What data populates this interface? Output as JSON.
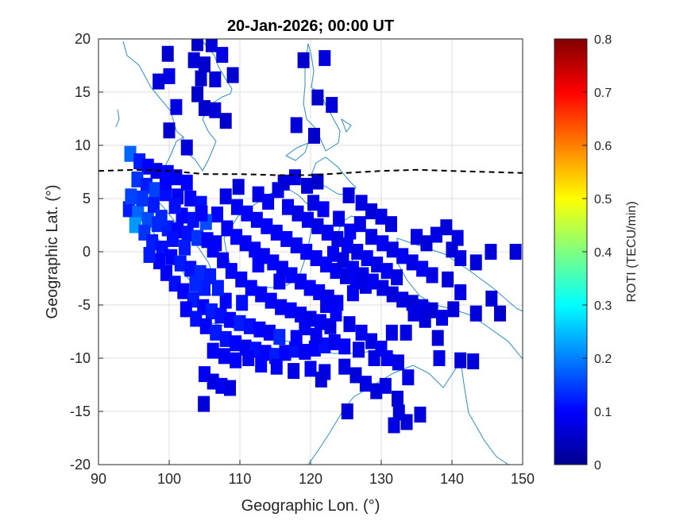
{
  "chart_data": {
    "type": "heatmap",
    "title": "20-Jan-2026; 00:00 UT",
    "xlabel": "Geographic Lon. (°)",
    "ylabel": "Geographic Lat. (°)",
    "xlim": [
      90,
      150
    ],
    "ylim": [
      -20,
      20
    ],
    "xticks": [
      "90",
      "100",
      "110",
      "120",
      "130",
      "140",
      "150"
    ],
    "yticks": [
      "20",
      "15",
      "10",
      "5",
      "0",
      "-5",
      "-10",
      "-15",
      "-20"
    ],
    "grid": true,
    "colorbar": {
      "label": "ROTI (TECU/min)",
      "range": [
        0,
        0.8
      ],
      "ticks": [
        "0",
        "0.1",
        "0.2",
        "0.3",
        "0.4",
        "0.5",
        "0.6",
        "0.7",
        "0.8"
      ],
      "colormap": "jet"
    },
    "dashed_line": {
      "color": "#000000",
      "points": [
        [
          90,
          7.6
        ],
        [
          95,
          7.7
        ],
        [
          100,
          7.6
        ],
        [
          105,
          7.3
        ],
        [
          110,
          7.3
        ],
        [
          115,
          7.2
        ],
        [
          120,
          7.2
        ],
        [
          125,
          7.4
        ],
        [
          130,
          7.6
        ],
        [
          135,
          7.7
        ],
        [
          140,
          7.6
        ],
        [
          145,
          7.5
        ],
        [
          150,
          7.4
        ]
      ]
    },
    "points": [
      [
        104,
        19.6,
        0.06
      ],
      [
        106,
        19.5,
        0.07
      ],
      [
        99.8,
        18.6,
        0.06
      ],
      [
        107.5,
        18.5,
        0.08
      ],
      [
        103.5,
        18,
        0.07
      ],
      [
        105,
        17.6,
        0.06
      ],
      [
        122,
        18.2,
        0.07
      ],
      [
        119,
        18,
        0.06
      ],
      [
        100,
        16.5,
        0.08
      ],
      [
        104.5,
        16.3,
        0.06
      ],
      [
        106.5,
        16.2,
        0.07
      ],
      [
        109,
        16.6,
        0.06
      ],
      [
        98.5,
        16,
        0.07
      ],
      [
        104,
        14.8,
        0.06
      ],
      [
        101,
        13.6,
        0.08
      ],
      [
        105,
        13.5,
        0.06
      ],
      [
        106.5,
        13.3,
        0.07
      ],
      [
        121,
        14.5,
        0.06
      ],
      [
        123,
        13.8,
        0.07
      ],
      [
        108,
        12.3,
        0.06
      ],
      [
        100,
        11.4,
        0.06
      ],
      [
        118,
        11.9,
        0.07
      ],
      [
        120.5,
        10.9,
        0.06
      ],
      [
        102.5,
        9.8,
        0.07
      ],
      [
        94.5,
        9.2,
        0.18
      ],
      [
        95.8,
        8.5,
        0.12
      ],
      [
        97,
        8,
        0.1
      ],
      [
        98.2,
        7.6,
        0.08
      ],
      [
        99.8,
        7.4,
        0.1
      ],
      [
        101,
        7,
        0.09
      ],
      [
        102.5,
        6.5,
        0.1
      ],
      [
        95.5,
        6.8,
        0.14
      ],
      [
        96.8,
        6.2,
        0.12
      ],
      [
        98,
        5.8,
        0.15
      ],
      [
        99.5,
        5.5,
        0.11
      ],
      [
        101.2,
        5.2,
        0.09
      ],
      [
        103,
        5,
        0.1
      ],
      [
        104.5,
        4.5,
        0.11
      ],
      [
        94.3,
        4,
        0.12
      ],
      [
        95.6,
        3.6,
        0.18
      ],
      [
        97,
        3,
        0.16
      ],
      [
        98.4,
        2.6,
        0.13
      ],
      [
        99.8,
        2.2,
        0.12
      ],
      [
        101.2,
        2,
        0.1
      ],
      [
        102.6,
        1.7,
        0.11
      ],
      [
        104,
        1.3,
        0.14
      ],
      [
        105.4,
        1.1,
        0.1
      ],
      [
        106.6,
        0.8,
        0.09
      ],
      [
        95.2,
        2.5,
        0.22
      ],
      [
        96.5,
        1.8,
        0.14
      ],
      [
        97.6,
        0.9,
        0.12
      ],
      [
        99,
        0.3,
        0.11
      ],
      [
        100.3,
        -0.5,
        0.1
      ],
      [
        101.6,
        -1.1,
        0.12
      ],
      [
        103,
        -1.6,
        0.11
      ],
      [
        104.4,
        -2,
        0.13
      ],
      [
        105.8,
        -2.3,
        0.12
      ],
      [
        98.6,
        -0.9,
        0.1
      ],
      [
        99.6,
        -2,
        0.09
      ],
      [
        100.8,
        -3,
        0.11
      ],
      [
        102,
        -3.7,
        0.1
      ],
      [
        103.4,
        -4.5,
        0.12
      ],
      [
        104.8,
        -5.2,
        0.1
      ],
      [
        106,
        -5.6,
        0.12
      ],
      [
        107.3,
        -6,
        0.11
      ],
      [
        108.6,
        -6.4,
        0.1
      ],
      [
        110,
        -6.7,
        0.12
      ],
      [
        111.4,
        -7,
        0.11
      ],
      [
        112.8,
        -7.3,
        0.1
      ],
      [
        114.2,
        -7.6,
        0.09
      ],
      [
        115.6,
        -8,
        0.13
      ],
      [
        102.4,
        -5.4,
        0.1
      ],
      [
        103.8,
        -6.3,
        0.11
      ],
      [
        105.2,
        -7,
        0.1
      ],
      [
        106.6,
        -7.6,
        0.12
      ],
      [
        108,
        -8.2,
        0.11
      ],
      [
        109.4,
        -8.6,
        0.1
      ],
      [
        110.8,
        -9,
        0.09
      ],
      [
        112.2,
        -9.2,
        0.11
      ],
      [
        113.6,
        -9.5,
        0.1
      ],
      [
        115,
        -9.8,
        0.12
      ],
      [
        116.4,
        -9.5,
        0.1
      ],
      [
        117.8,
        -9.2,
        0.11
      ],
      [
        119.2,
        -9.4,
        0.09
      ],
      [
        120.6,
        -9.1,
        0.1
      ],
      [
        122,
        -8.8,
        0.11
      ],
      [
        123.4,
        -8.5,
        0.09
      ],
      [
        124.8,
        -8.9,
        0.1
      ],
      [
        106.2,
        -9.3,
        0.1
      ],
      [
        107.8,
        -9.8,
        0.09
      ],
      [
        109.4,
        -10.2,
        0.1
      ],
      [
        111.2,
        -10,
        0.09
      ],
      [
        113,
        -10.6,
        0.1
      ],
      [
        115.2,
        -10.8,
        0.09
      ],
      [
        117.6,
        -11.2,
        0.08
      ],
      [
        120,
        -11,
        0.09
      ],
      [
        122,
        -11.3,
        0.08
      ],
      [
        105,
        -11.5,
        0.09
      ],
      [
        106.2,
        -12.2,
        0.08
      ],
      [
        107.4,
        -12.6,
        0.09
      ],
      [
        108.6,
        -12.8,
        0.08
      ],
      [
        104.9,
        -14.3,
        0.07
      ],
      [
        106.2,
        0.2,
        0.1
      ],
      [
        107.6,
        -0.8,
        0.09
      ],
      [
        108.8,
        -1.8,
        0.1
      ],
      [
        110.2,
        -2.6,
        0.09
      ],
      [
        111.6,
        -3.4,
        0.1
      ],
      [
        113,
        -4,
        0.09
      ],
      [
        114.4,
        -4.6,
        0.1
      ],
      [
        115.8,
        -5.2,
        0.09
      ],
      [
        117.2,
        -5.5,
        0.1
      ],
      [
        118.6,
        -5.9,
        0.09
      ],
      [
        120,
        -6.3,
        0.08
      ],
      [
        121.4,
        -6.6,
        0.09
      ],
      [
        122.8,
        -7,
        0.08
      ],
      [
        108.2,
        2.2,
        0.09
      ],
      [
        109.5,
        1.4,
        0.1
      ],
      [
        110.8,
        0.8,
        0.09
      ],
      [
        112.1,
        0.2,
        0.1
      ],
      [
        113.4,
        -0.4,
        0.09
      ],
      [
        114.7,
        -1,
        0.1
      ],
      [
        116,
        -1.6,
        0.09
      ],
      [
        117.3,
        -2.2,
        0.1
      ],
      [
        118.6,
        -2.8,
        0.09
      ],
      [
        119.9,
        -3.4,
        0.1
      ],
      [
        121.2,
        -3.8,
        0.09
      ],
      [
        122.5,
        -4.3,
        0.08
      ],
      [
        123.8,
        -4.8,
        0.09
      ],
      [
        109.6,
        4.2,
        0.09
      ],
      [
        111,
        3.6,
        0.1
      ],
      [
        112.4,
        3,
        0.09
      ],
      [
        113.8,
        2.4,
        0.1
      ],
      [
        115.2,
        1.8,
        0.09
      ],
      [
        116.6,
        1.2,
        0.1
      ],
      [
        118,
        0.6,
        0.09
      ],
      [
        119.4,
        0,
        0.1
      ],
      [
        120.8,
        -0.6,
        0.09
      ],
      [
        122.2,
        -1.2,
        0.1
      ],
      [
        123.6,
        -1.8,
        0.09
      ],
      [
        125,
        -2.3,
        0.08
      ],
      [
        126.4,
        -2.8,
        0.09
      ],
      [
        127.8,
        -3.2,
        0.08
      ],
      [
        106.8,
        3.5,
        0.1
      ],
      [
        105.2,
        2.8,
        0.16
      ],
      [
        108,
        5.2,
        0.08
      ],
      [
        109.8,
        6.1,
        0.07
      ],
      [
        112.6,
        5.4,
        0.08
      ],
      [
        114,
        4.7,
        0.09
      ],
      [
        115.4,
        5.8,
        0.08
      ],
      [
        116.8,
        4.2,
        0.09
      ],
      [
        118.2,
        3.6,
        0.08
      ],
      [
        119.6,
        3,
        0.09
      ],
      [
        121,
        2.4,
        0.08
      ],
      [
        122.4,
        1.8,
        0.09
      ],
      [
        123.8,
        1.2,
        0.08
      ],
      [
        125.2,
        0.6,
        0.09
      ],
      [
        126.6,
        0,
        0.08
      ],
      [
        128,
        -0.6,
        0.09
      ],
      [
        129.4,
        -1.2,
        0.08
      ],
      [
        130.8,
        -1.8,
        0.09
      ],
      [
        132.2,
        -2.4,
        0.08
      ],
      [
        116.2,
        6.5,
        0.07
      ],
      [
        117.8,
        7,
        0.08
      ],
      [
        119.5,
        6.2,
        0.07
      ],
      [
        121,
        6.6,
        0.06
      ],
      [
        125.4,
        5.3,
        0.07
      ],
      [
        127.2,
        4.6,
        0.08
      ],
      [
        128.6,
        3.8,
        0.07
      ],
      [
        130,
        3.3,
        0.08
      ],
      [
        131.4,
        2.6,
        0.07
      ],
      [
        124,
        3.1,
        0.08
      ],
      [
        125.6,
        1.9,
        0.09
      ],
      [
        127,
        2.6,
        0.08
      ],
      [
        128.6,
        1.4,
        0.08
      ],
      [
        130.2,
        0.8,
        0.09
      ],
      [
        131.6,
        0.2,
        0.08
      ],
      [
        133,
        -0.4,
        0.09
      ],
      [
        134.4,
        -1,
        0.08
      ],
      [
        135.8,
        -1.6,
        0.09
      ],
      [
        137.2,
        -2.2,
        0.08
      ],
      [
        120.4,
        4.6,
        0.08
      ],
      [
        121.8,
        4,
        0.09
      ],
      [
        123.2,
        -0.2,
        0.09
      ],
      [
        124.6,
        -0.8,
        0.08
      ],
      [
        126,
        -1.6,
        0.09
      ],
      [
        127.4,
        -2.2,
        0.08
      ],
      [
        128.8,
        -2.8,
        0.09
      ],
      [
        130.2,
        -3.4,
        0.08
      ],
      [
        131.6,
        -4,
        0.07
      ],
      [
        133,
        -4.5,
        0.08
      ],
      [
        134.4,
        -4.8,
        0.07
      ],
      [
        135.8,
        -5.2,
        0.08
      ],
      [
        137.2,
        -5.5,
        0.07
      ],
      [
        138.6,
        -6.2,
        0.08
      ],
      [
        140.2,
        -5.4,
        0.07
      ],
      [
        135,
        1.4,
        0.08
      ],
      [
        136.4,
        0.8,
        0.07
      ],
      [
        137.8,
        1.6,
        0.08
      ],
      [
        139.2,
        2.3,
        0.07
      ],
      [
        140.8,
        1.3,
        0.08
      ],
      [
        140,
        0.2,
        0.07
      ],
      [
        141.2,
        -0.6,
        0.08
      ],
      [
        143.4,
        -1,
        0.07
      ],
      [
        145.5,
        0,
        0.07
      ],
      [
        149,
        0,
        0.07
      ],
      [
        139.4,
        -2.6,
        0.07
      ],
      [
        141.2,
        -3.8,
        0.08
      ],
      [
        143.4,
        -5.8,
        0.07
      ],
      [
        145.6,
        -4.4,
        0.07
      ],
      [
        146.8,
        -5.8,
        0.06
      ],
      [
        138,
        -8.1,
        0.07
      ],
      [
        136.2,
        -6.4,
        0.07
      ],
      [
        134.6,
        -5.8,
        0.08
      ],
      [
        118,
        -8.1,
        0.1
      ],
      [
        119.2,
        -7.1,
        0.09
      ],
      [
        120.8,
        -7.9,
        0.09
      ],
      [
        125.5,
        -6.8,
        0.08
      ],
      [
        127.2,
        -7.6,
        0.09
      ],
      [
        128.6,
        -8.4,
        0.08
      ],
      [
        130,
        -9.1,
        0.09
      ],
      [
        126.8,
        -9.2,
        0.08
      ],
      [
        121.5,
        -12,
        0.07
      ],
      [
        124.8,
        -10.8,
        0.08
      ],
      [
        126.4,
        -11.6,
        0.07
      ],
      [
        127.8,
        -12.4,
        0.08
      ],
      [
        129.3,
        -13.1,
        0.07
      ],
      [
        130.6,
        -12.6,
        0.08
      ],
      [
        132.3,
        -13.8,
        0.07
      ],
      [
        133.8,
        -11.8,
        0.08
      ],
      [
        135.5,
        -15.3,
        0.07
      ],
      [
        133.6,
        -16,
        0.07
      ],
      [
        131.8,
        -16.3,
        0.08
      ],
      [
        132.5,
        -15.1,
        0.07
      ],
      [
        125.2,
        -15,
        0.07
      ],
      [
        129,
        -10,
        0.08
      ],
      [
        130.8,
        -10,
        0.09
      ],
      [
        132.4,
        -10.4,
        0.08
      ],
      [
        138.2,
        -10,
        0.08
      ],
      [
        141.2,
        -10.2,
        0.07
      ],
      [
        143,
        -10.3,
        0.07
      ],
      [
        131.5,
        -7.6,
        0.08
      ],
      [
        133.5,
        -7.6,
        0.08
      ],
      [
        126,
        -3.9,
        0.09
      ],
      [
        123.6,
        -5.8,
        0.1
      ],
      [
        122.2,
        -5,
        0.09
      ],
      [
        115.6,
        -2.8,
        0.09
      ],
      [
        112.6,
        -1.2,
        0.1
      ],
      [
        110.3,
        -4.8,
        0.11
      ],
      [
        108,
        -4.6,
        0.1
      ],
      [
        106.9,
        -3.4,
        0.12
      ],
      [
        105,
        -3.4,
        0.12
      ],
      [
        103.7,
        -3,
        0.13
      ],
      [
        102.2,
        0.4,
        0.12
      ],
      [
        100.5,
        1.2,
        0.11
      ],
      [
        101.8,
        3.4,
        0.1
      ],
      [
        103.4,
        3,
        0.11
      ],
      [
        104.6,
        3.6,
        0.1
      ],
      [
        100.8,
        4.3,
        0.11
      ],
      [
        97.8,
        4.4,
        0.12
      ],
      [
        96.2,
        5,
        0.14
      ],
      [
        99.5,
        6.5,
        0.1
      ],
      [
        98.9,
        3.2,
        0.13
      ],
      [
        97.2,
        -0.3,
        0.12
      ],
      [
        94.6,
        5.2,
        0.15
      ]
    ]
  }
}
